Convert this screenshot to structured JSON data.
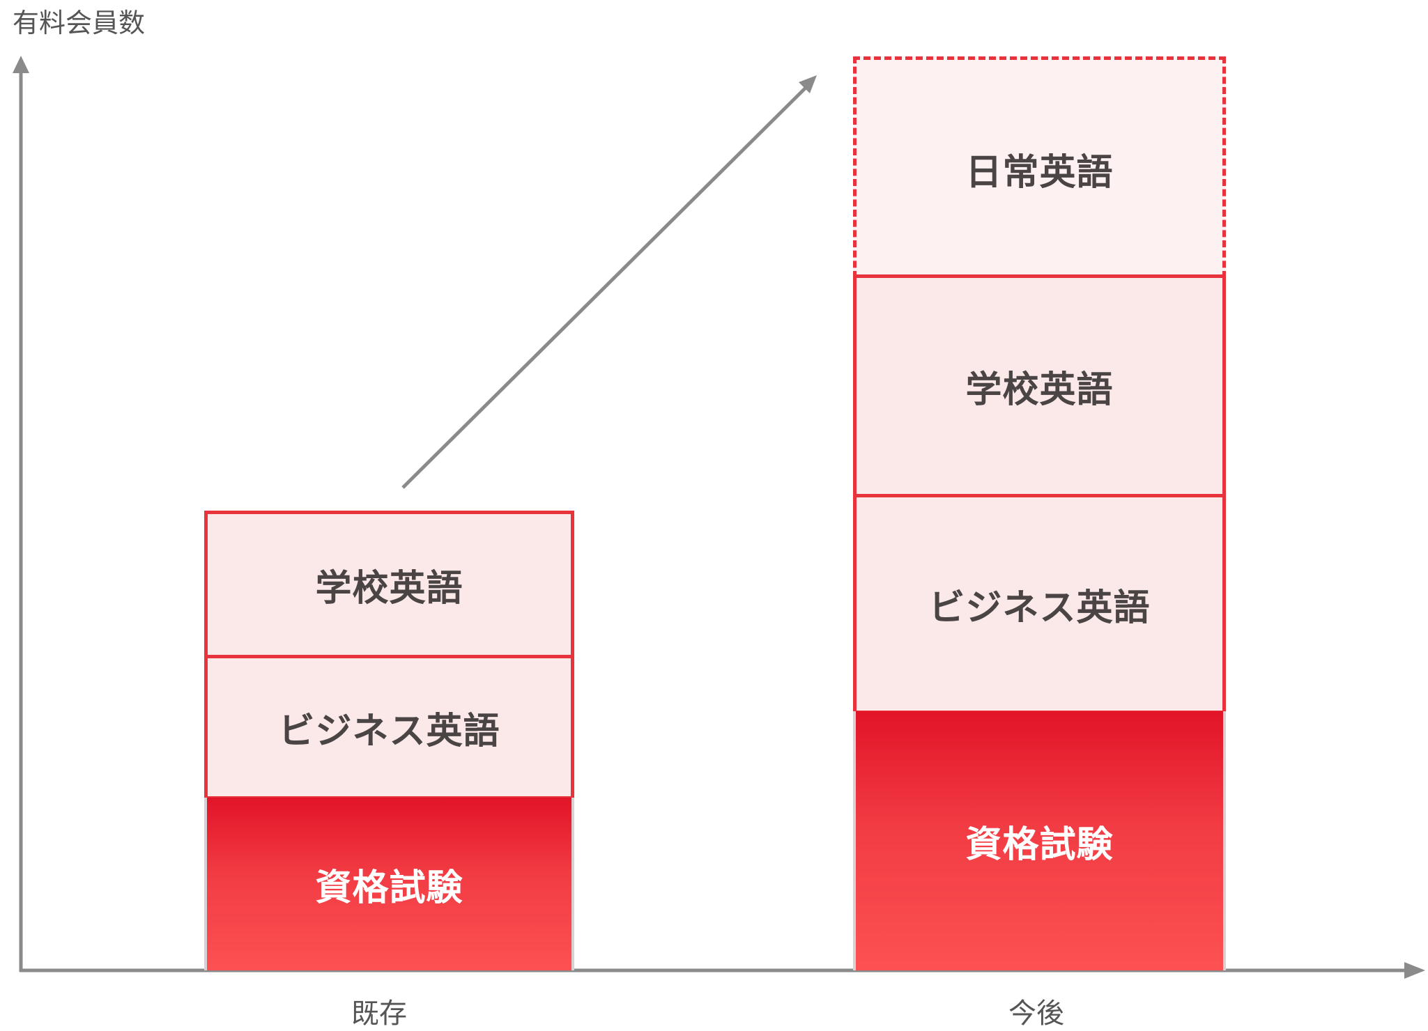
{
  "axes": {
    "y_title": "有料会員数",
    "x_color": "#8a8a8a"
  },
  "bars": [
    {
      "x_label": "既存",
      "segments": [
        {
          "label": "資格試験",
          "style": "solid"
        },
        {
          "label": "ビジネス英語",
          "style": "light"
        },
        {
          "label": "学校英語",
          "style": "light"
        }
      ]
    },
    {
      "x_label": "今後",
      "segments": [
        {
          "label": "資格試験",
          "style": "solid"
        },
        {
          "label": "ビジネス英語",
          "style": "light"
        },
        {
          "label": "学校英語",
          "style": "light"
        },
        {
          "label": "日常英語",
          "style": "dashed"
        }
      ]
    }
  ],
  "colors": {
    "accent_red": "#e21428",
    "light_pink": "#fbe9ea",
    "border_red": "#e8323c",
    "axis_gray": "#8a8a8a",
    "text_dark": "#4a4445"
  },
  "growth_arrow_icon": "arrow-up-right-icon"
}
